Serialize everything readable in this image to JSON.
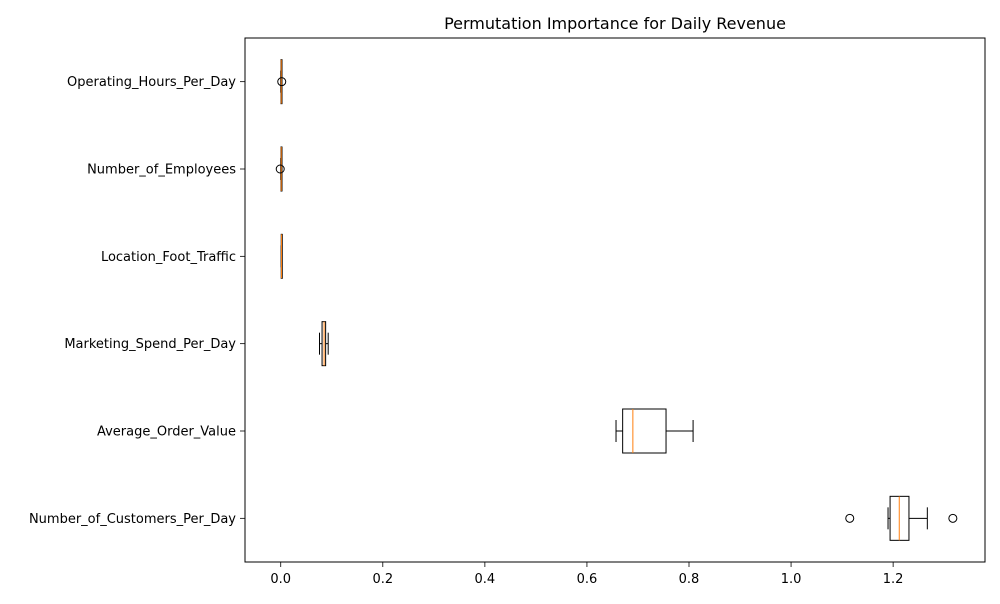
{
  "chart_data": {
    "type": "boxplot",
    "orientation": "horizontal",
    "title": "Permutation Importance for Daily Revenue",
    "xlabel": "",
    "ylabel": "",
    "xlim": [
      -0.07,
      1.38
    ],
    "xticks": [
      0.0,
      0.2,
      0.4,
      0.6,
      0.8,
      1.0,
      1.2
    ],
    "xtick_labels": [
      "0.0",
      "0.2",
      "0.4",
      "0.6",
      "0.8",
      "1.0",
      "1.2"
    ],
    "grid": false,
    "colors": {
      "box": "#000000",
      "median": "#ff7f0e",
      "axes": "#000000",
      "background": "#ffffff"
    },
    "categories": [
      "Number_of_Customers_Per_Day",
      "Average_Order_Value",
      "Marketing_Spend_Per_Day",
      "Location_Foot_Traffic",
      "Number_of_Employees",
      "Operating_Hours_Per_Day"
    ],
    "boxes": [
      {
        "label": "Number_of_Customers_Per_Day",
        "whisker_low": 1.19,
        "q1": 1.194,
        "median": 1.212,
        "q3": 1.231,
        "whisker_high": 1.267,
        "outliers": [
          1.115,
          1.317
        ]
      },
      {
        "label": "Average_Order_Value",
        "whisker_low": 0.657,
        "q1": 0.67,
        "median": 0.69,
        "q3": 0.755,
        "whisker_high": 0.808,
        "outliers": []
      },
      {
        "label": "Marketing_Spend_Per_Day",
        "whisker_low": 0.076,
        "q1": 0.081,
        "median": 0.085,
        "q3": 0.088,
        "whisker_high": 0.093,
        "outliers": []
      },
      {
        "label": "Location_Foot_Traffic",
        "whisker_low": 0.001,
        "q1": 0.001,
        "median": 0.0015,
        "q3": 0.002,
        "whisker_high": 0.002,
        "outliers": []
      },
      {
        "label": "Number_of_Employees",
        "whisker_low": 0.0,
        "q1": 0.0005,
        "median": 0.001,
        "q3": 0.0015,
        "whisker_high": 0.002,
        "outliers": [
          -0.001
        ]
      },
      {
        "label": "Operating_Hours_Per_Day",
        "whisker_low": 0.0,
        "q1": 0.0005,
        "median": 0.001,
        "q3": 0.0015,
        "whisker_high": 0.002,
        "outliers": [
          0.002
        ]
      }
    ]
  }
}
